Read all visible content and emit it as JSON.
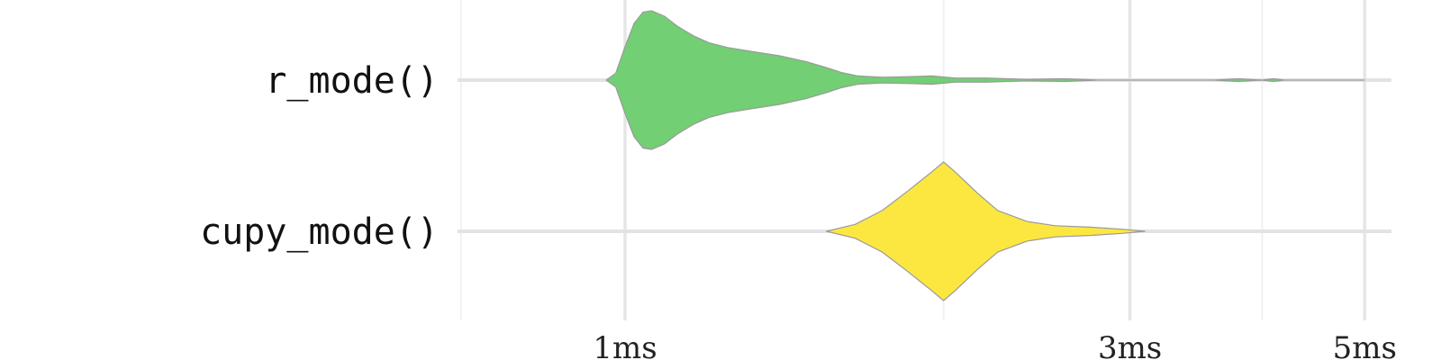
{
  "chart_data": {
    "type": "violin",
    "categories": [
      "r_mode()",
      "cupy_mode()"
    ],
    "x_ticks": [
      {
        "value": 1,
        "label": "1ms"
      },
      {
        "value": 3,
        "label": "3ms"
      },
      {
        "value": 5,
        "label": "5ms"
      }
    ],
    "x_scale": "log",
    "xlim": [
      0.7,
      5.3
    ],
    "grid": true,
    "legend": "none",
    "series": [
      {
        "category": "r_mode()",
        "color": "#72cf74",
        "density": [
          [
            0.96,
            0.0
          ],
          [
            0.98,
            0.1
          ],
          [
            1.0,
            0.48
          ],
          [
            1.02,
            0.82
          ],
          [
            1.04,
            0.98
          ],
          [
            1.06,
            1.0
          ],
          [
            1.09,
            0.92
          ],
          [
            1.12,
            0.78
          ],
          [
            1.16,
            0.64
          ],
          [
            1.2,
            0.54
          ],
          [
            1.25,
            0.47
          ],
          [
            1.32,
            0.41
          ],
          [
            1.4,
            0.35
          ],
          [
            1.48,
            0.27
          ],
          [
            1.55,
            0.18
          ],
          [
            1.6,
            0.11
          ],
          [
            1.66,
            0.06
          ],
          [
            1.75,
            0.04
          ],
          [
            1.85,
            0.05
          ],
          [
            1.95,
            0.06
          ],
          [
            2.05,
            0.03
          ],
          [
            2.2,
            0.03
          ],
          [
            2.4,
            0.01
          ],
          [
            2.6,
            0.02
          ],
          [
            2.8,
            0.0
          ],
          [
            3.6,
            0.0
          ],
          [
            3.8,
            0.02
          ],
          [
            4.0,
            0.0
          ],
          [
            4.1,
            0.02
          ],
          [
            4.2,
            0.0
          ],
          [
            5.0,
            0.0
          ]
        ]
      },
      {
        "category": "cupy_mode()",
        "color": "#fce741",
        "density": [
          [
            1.55,
            0.0
          ],
          [
            1.65,
            0.1
          ],
          [
            1.75,
            0.3
          ],
          [
            1.85,
            0.58
          ],
          [
            1.95,
            0.86
          ],
          [
            2.0,
            1.0
          ],
          [
            2.05,
            0.86
          ],
          [
            2.15,
            0.56
          ],
          [
            2.25,
            0.3
          ],
          [
            2.4,
            0.14
          ],
          [
            2.55,
            0.08
          ],
          [
            2.75,
            0.06
          ],
          [
            2.95,
            0.03
          ],
          [
            3.1,
            0.0
          ]
        ]
      }
    ]
  }
}
